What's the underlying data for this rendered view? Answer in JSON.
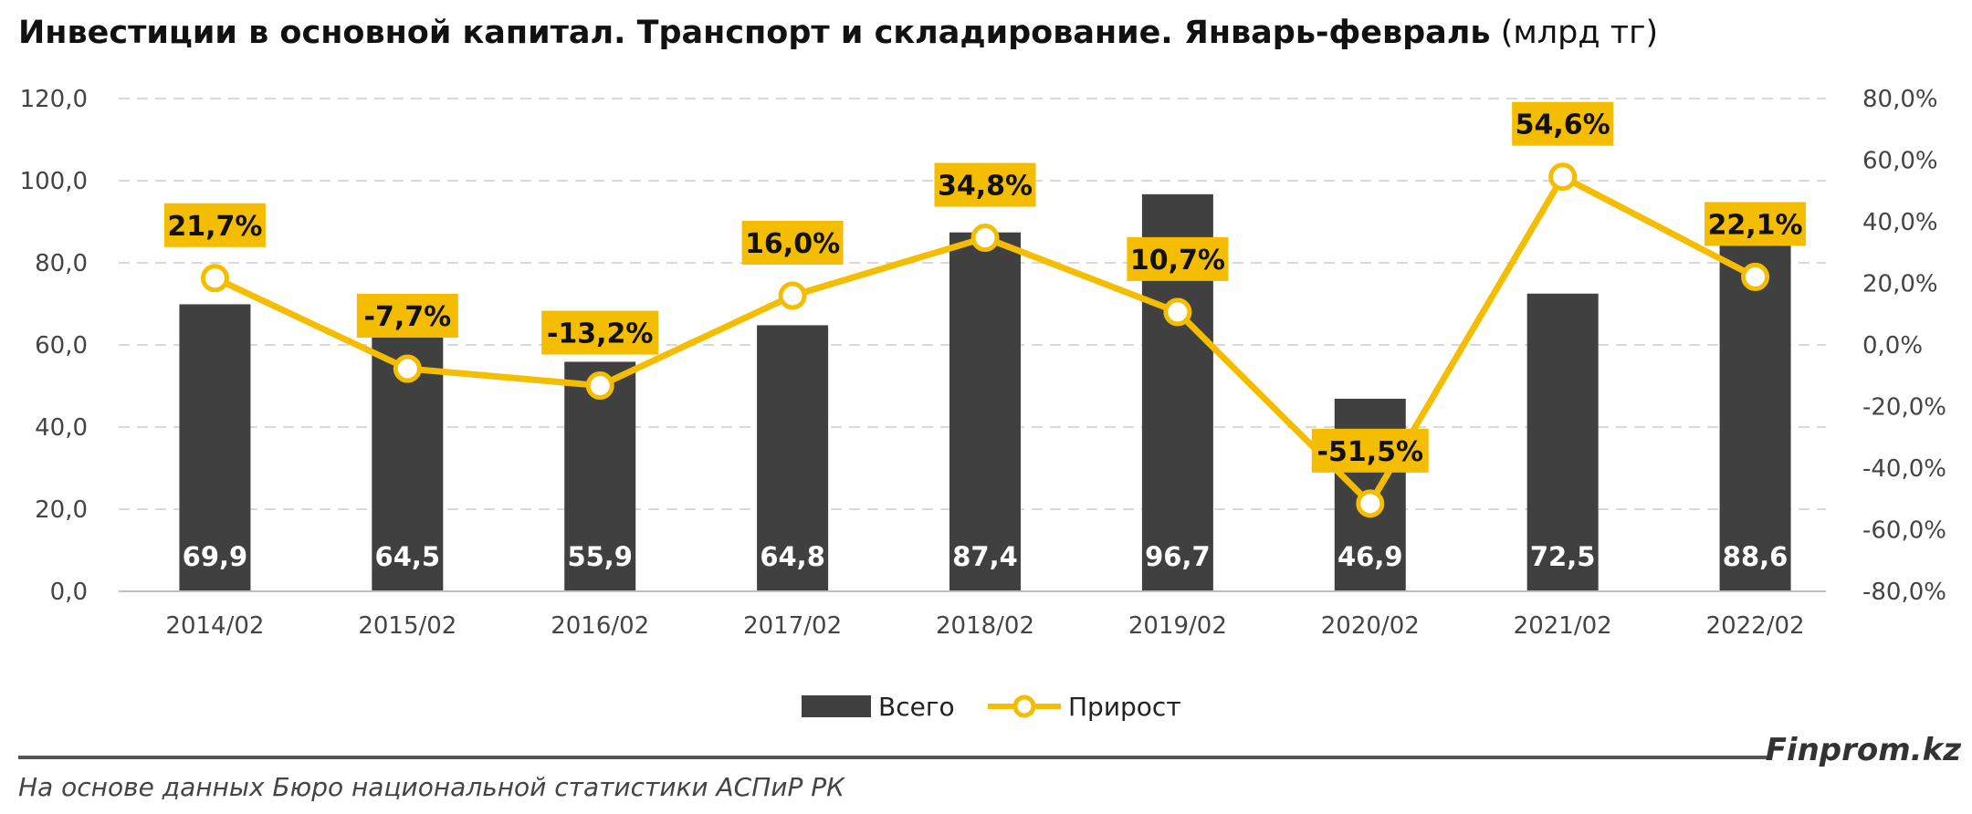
{
  "header": {
    "title": "Инвестиции в основной капитал. Транспорт и складирование. Январь-февраль",
    "unit": "(млрд тг)"
  },
  "footer": {
    "brand": "Finprom.kz",
    "source": "На основе данных Бюро национальной статистики АСПиР РК"
  },
  "colors": {
    "bar": "#404040",
    "line": "#F5BD00",
    "label_bg": "#F5BD00",
    "grid": "#D9D9D9"
  },
  "chart_data": {
    "type": "bar",
    "title": "Инвестиции в основной капитал. Транспорт и складирование. Январь-февраль (млрд тг)",
    "categories": [
      "2014/02",
      "2015/02",
      "2016/02",
      "2017/02",
      "2018/02",
      "2019/02",
      "2020/02",
      "2021/02",
      "2022/02"
    ],
    "series": [
      {
        "name": "Всего",
        "type": "bar",
        "axis": "left",
        "values": [
          69.9,
          64.5,
          55.9,
          64.8,
          87.4,
          96.7,
          46.9,
          72.5,
          88.6
        ],
        "labels": [
          "69,9",
          "64,5",
          "55,9",
          "64,8",
          "87,4",
          "96,7",
          "46,9",
          "72,5",
          "88,6"
        ]
      },
      {
        "name": "Прирост",
        "type": "line",
        "axis": "right",
        "values": [
          21.7,
          -7.7,
          -13.2,
          16.0,
          34.8,
          10.7,
          -51.5,
          54.6,
          22.1
        ],
        "labels": [
          "21,7%",
          "-7,7%",
          "-13,2%",
          "16,0%",
          "34,8%",
          "10,7%",
          "-51,5%",
          "54,6%",
          "22,1%"
        ]
      }
    ],
    "y_left": {
      "min": 0,
      "max": 120,
      "ticks": [
        0,
        20,
        40,
        60,
        80,
        100,
        120
      ],
      "tick_labels": [
        "0,0",
        "20,0",
        "40,0",
        "60,0",
        "80,0",
        "100,0",
        "120,0"
      ]
    },
    "y_right": {
      "min": -80,
      "max": 80,
      "ticks": [
        -80,
        -60,
        -40,
        -20,
        0,
        20,
        40,
        60,
        80
      ],
      "tick_labels": [
        "-80,0%",
        "-60,0%",
        "-40,0%",
        "-20,0%",
        "0,0%",
        "20,0%",
        "40,0%",
        "60,0%",
        "80,0%"
      ]
    },
    "grid": true,
    "legend": "bottom-center"
  }
}
